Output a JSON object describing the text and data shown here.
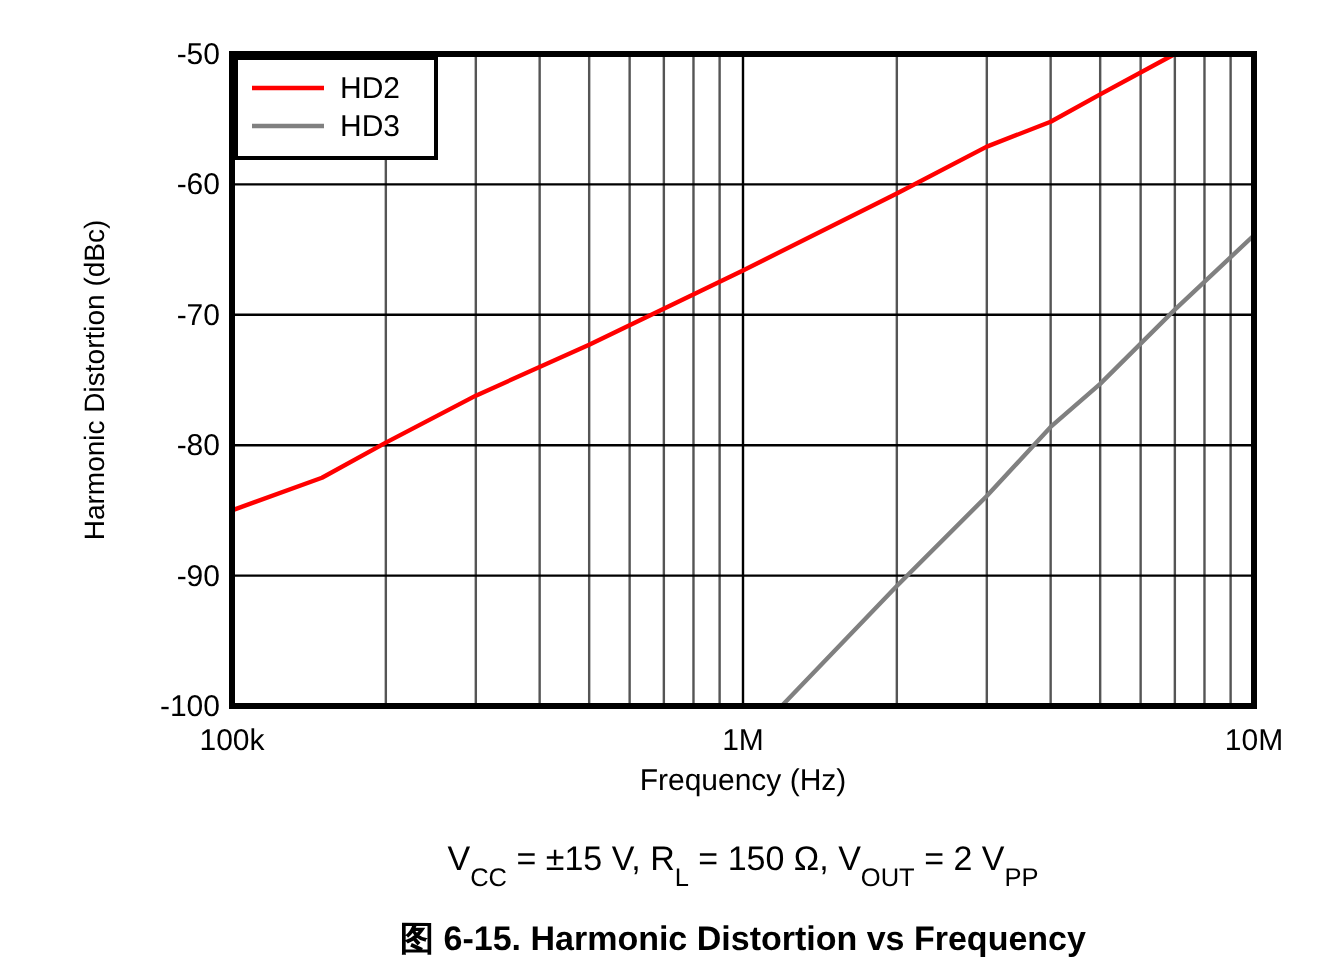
{
  "chart_data": {
    "type": "line",
    "title": "图 6-15. Harmonic Distortion vs Frequency",
    "xlabel": "Frequency (Hz)",
    "ylabel": "Harmonic Distortion (dBc)",
    "annotations": [
      "V$_{CC}$ = ±15 V, R$_{L}$ = 150 Ω, V$_{OUT}$ = 2 V$_{PP}$"
    ],
    "log": "x",
    "grid": true,
    "legend": "top left",
    "xlim": [
      100000,
      10000000
    ],
    "ylim": [
      -100,
      -50
    ],
    "xticks": [
      {
        "value": 100000,
        "label": "100k"
      },
      {
        "value": 200000,
        "label": null
      },
      {
        "value": 300000,
        "label": null
      },
      {
        "value": 400000,
        "label": null
      },
      {
        "value": 500000,
        "label": null
      },
      {
        "value": 600000,
        "label": null
      },
      {
        "value": 700000,
        "label": null
      },
      {
        "value": 800000,
        "label": null
      },
      {
        "value": 900000,
        "label": null
      },
      {
        "value": 1000000,
        "label": "1M"
      },
      {
        "value": 2000000,
        "label": null
      },
      {
        "value": 3000000,
        "label": null
      },
      {
        "value": 4000000,
        "label": null
      },
      {
        "value": 5000000,
        "label": null
      },
      {
        "value": 6000000,
        "label": null
      },
      {
        "value": 7000000,
        "label": null
      },
      {
        "value": 8000000,
        "label": null
      },
      {
        "value": 9000000,
        "label": null
      },
      {
        "value": 10000000,
        "label": "10M"
      }
    ],
    "yticks": [
      -100,
      -90,
      -80,
      -70,
      -60,
      -50
    ],
    "series": [
      {
        "name": "HD2",
        "color": "#ff0000",
        "x": [
          100000,
          150000,
          200000,
          300000,
          500000,
          1000000,
          2000000,
          3000000,
          4000000,
          5000000,
          7000000
        ],
        "values": [
          -85,
          -82.5,
          -79.8,
          -76.2,
          -72.3,
          -66.6,
          -60.7,
          -57.1,
          -55.2,
          -53.1,
          -50
        ]
      },
      {
        "name": "HD3",
        "color": "#808080",
        "x": [
          1190000,
          2000000,
          3000000,
          4000000,
          5000000,
          7000000,
          10000000
        ],
        "values": [
          -100,
          -90.8,
          -83.9,
          -78.6,
          -75.3,
          -69.6,
          -63.9
        ]
      }
    ]
  }
}
